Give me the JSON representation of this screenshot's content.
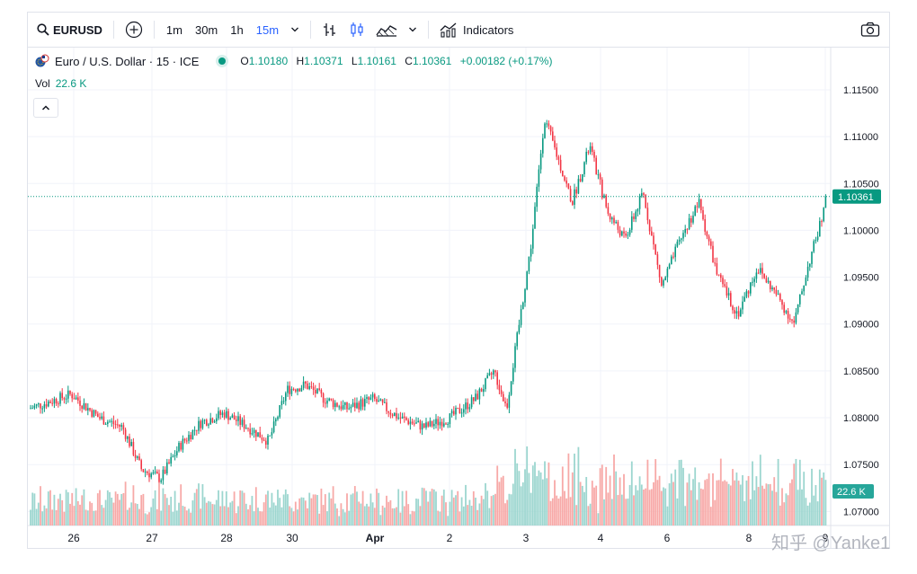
{
  "toolbar": {
    "symbol": "EURUSD",
    "timeframes": [
      "1m",
      "30m",
      "1h",
      "15m"
    ],
    "active_timeframe": "15m",
    "indicators_label": "Indicators"
  },
  "legend": {
    "title": "Euro / U.S. Dollar · 15 · ICE",
    "o_label": "O",
    "o_value": "1.10180",
    "h_label": "H",
    "h_value": "1.10371",
    "l_label": "L",
    "l_value": "1.10161",
    "c_label": "C",
    "c_value": "1.10361",
    "change": "+0.00182 (+0.17%)",
    "vol_label": "Vol",
    "vol_value": "22.6 K"
  },
  "watermark": "知乎 @Yanke1",
  "colors": {
    "up": "#089981",
    "down": "#f23645",
    "up_vol": "#9cd6cf",
    "down_vol": "#f7a9a7",
    "accent": "#2962ff"
  },
  "chart_data": {
    "type": "candlestick",
    "symbol": "EURUSD",
    "interval": "15",
    "x_ticks": [
      "26",
      "27",
      "28",
      "30",
      "Apr",
      "2",
      "3",
      "4",
      "6",
      "8",
      "9"
    ],
    "y_ticks": [
      "1.11500",
      "1.11000",
      "1.10500",
      "1.10000",
      "1.09500",
      "1.09000",
      "1.08500",
      "1.08000",
      "1.07500",
      "1.07000"
    ],
    "ylim": [
      1.0685,
      1.1195
    ],
    "last_price": "1.10361",
    "last_volume": "22.6 K",
    "price_path": [
      [
        "26",
        1.081
      ],
      [
        "26",
        1.0825
      ],
      [
        "26",
        1.08
      ],
      [
        "27",
        1.079
      ],
      [
        "27",
        1.0745
      ],
      [
        "27",
        1.0735
      ],
      [
        "27",
        1.077
      ],
      [
        "28",
        1.0795
      ],
      [
        "28",
        1.0805
      ],
      [
        "28",
        1.079
      ],
      [
        "30",
        1.0775
      ],
      [
        "30",
        1.083
      ],
      [
        "30",
        1.0835
      ],
      [
        "30",
        1.082
      ],
      [
        "Apr",
        1.081
      ],
      [
        "Apr",
        1.082
      ],
      [
        "Apr",
        1.08
      ],
      [
        "2",
        1.079
      ],
      [
        "2",
        1.08
      ],
      [
        "2",
        1.082
      ],
      [
        "3",
        1.085
      ],
      [
        "3",
        1.081
      ],
      [
        "3",
        1.09
      ],
      [
        "3",
        1.099
      ],
      [
        "3",
        1.112
      ],
      [
        "3",
        1.108
      ],
      [
        "4",
        1.103
      ],
      [
        "4",
        1.109
      ],
      [
        "4",
        1.102
      ],
      [
        "4",
        1.099
      ],
      [
        "6",
        1.104
      ],
      [
        "6",
        1.094
      ],
      [
        "6",
        1.099
      ],
      [
        "6",
        1.103
      ],
      [
        "8",
        1.095
      ],
      [
        "8",
        1.091
      ],
      [
        "8",
        1.096
      ],
      [
        "8",
        1.093
      ],
      [
        "9",
        1.09
      ],
      [
        "9",
        1.096
      ],
      [
        "9",
        1.1036
      ]
    ],
    "grid": true,
    "volume_pane": true
  }
}
